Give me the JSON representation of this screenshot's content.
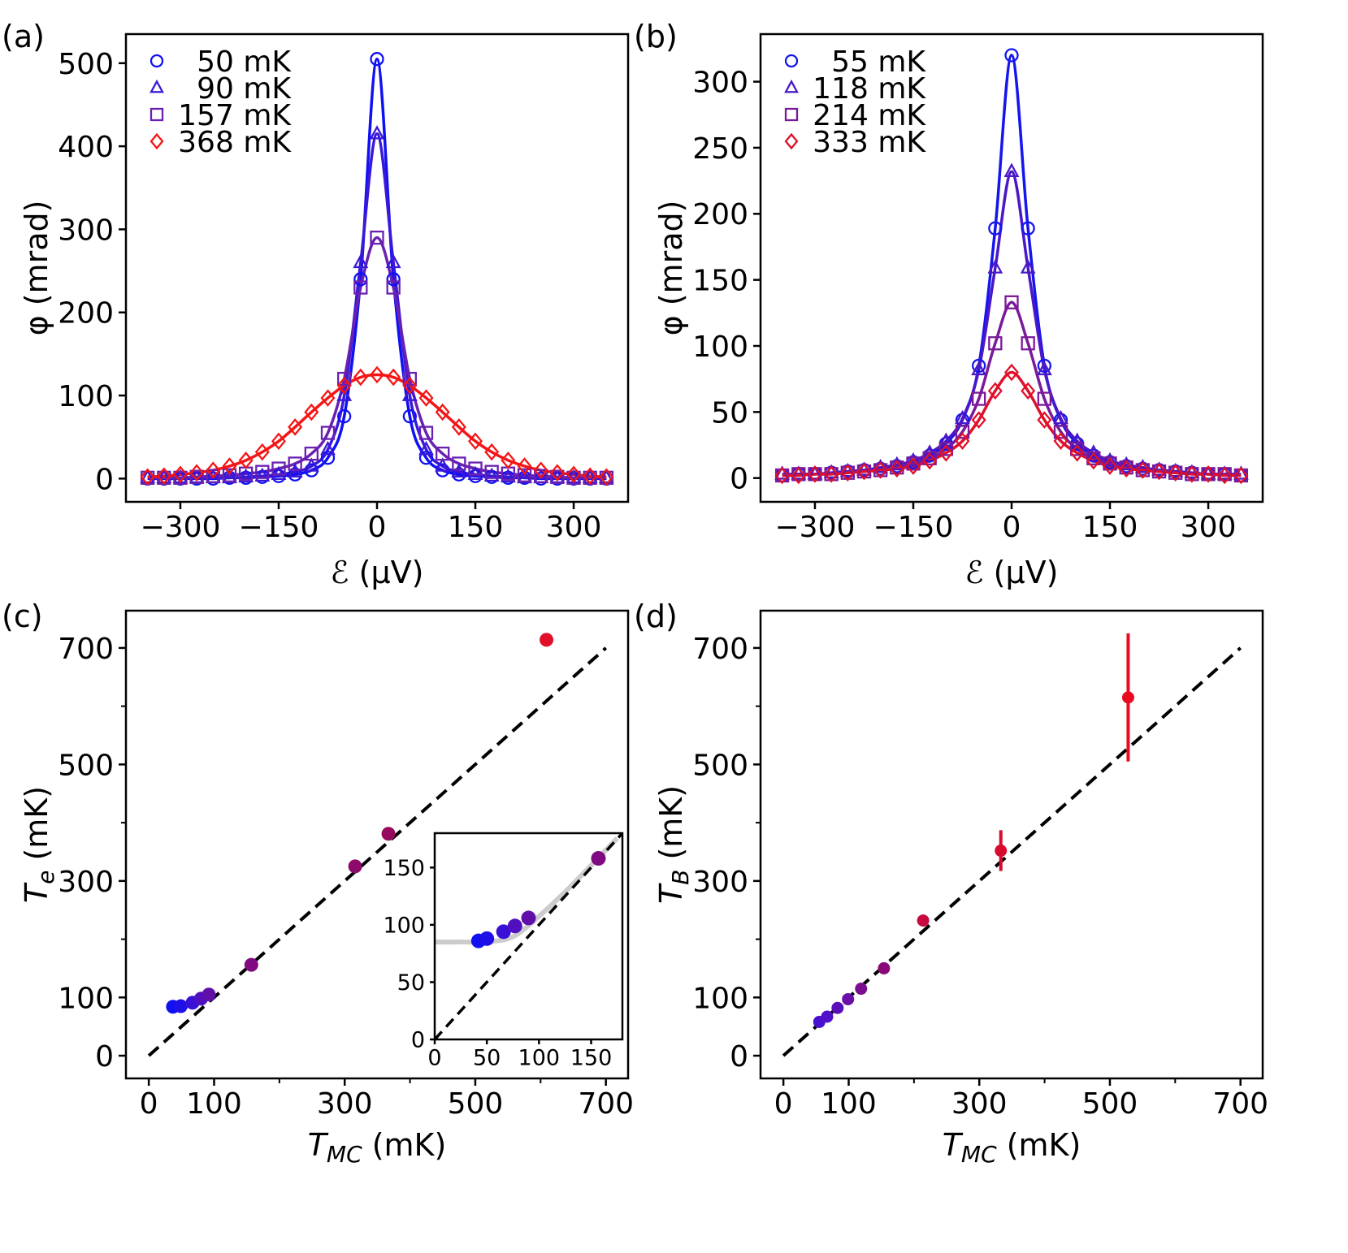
{
  "chart_data": [
    {
      "panel": "(a)",
      "type": "scatter",
      "xlabel": "ℰ (μV)",
      "ylabel": "φ (mrad)",
      "xlim": [
        -383,
        383
      ],
      "ylim": [
        -28,
        535
      ],
      "xticks": [
        -300,
        -150,
        0,
        150,
        300
      ],
      "xtick_labels": [
        "−300",
        "−150",
        "0",
        "150",
        "300"
      ],
      "yticks": [
        0,
        100,
        200,
        300,
        400,
        500
      ],
      "ytick_labels": [
        "0",
        "100",
        "200",
        "300",
        "400",
        "500"
      ],
      "legend_placement": "top-left",
      "x": [
        -350,
        -325,
        -300,
        -275,
        -250,
        -225,
        -200,
        -175,
        -150,
        -125,
        -100,
        -75,
        -50,
        -25,
        0,
        25,
        50,
        75,
        100,
        125,
        150,
        175,
        200,
        225,
        250,
        275,
        300,
        325,
        350
      ],
      "series": [
        {
          "name": "50 mK",
          "marker": "circle",
          "color": "#1010f5",
          "values": [
            0,
            0,
            0,
            0,
            0,
            1,
            1,
            2,
            3,
            5,
            10,
            25,
            75,
            240,
            505,
            240,
            75,
            25,
            10,
            5,
            3,
            2,
            1,
            1,
            0,
            0,
            0,
            0,
            0
          ]
        },
        {
          "name": "90 mK",
          "marker": "triangle",
          "color": "#3a18d8",
          "values": [
            1,
            1,
            1,
            1,
            1,
            1,
            2,
            3,
            5,
            8,
            15,
            35,
            100,
            260,
            415,
            260,
            100,
            35,
            15,
            8,
            5,
            3,
            2,
            1,
            1,
            1,
            1,
            1,
            1
          ]
        },
        {
          "name": "157 mK",
          "marker": "square",
          "color": "#6a20b0",
          "values": [
            1,
            1,
            1,
            2,
            3,
            4,
            6,
            8,
            12,
            18,
            30,
            55,
            120,
            230,
            290,
            230,
            120,
            55,
            30,
            18,
            12,
            8,
            6,
            4,
            3,
            2,
            1,
            1,
            1
          ]
        },
        {
          "name": "368 mK",
          "marker": "diamond",
          "color": "#f51515",
          "values": [
            2,
            3,
            5,
            7,
            10,
            15,
            22,
            32,
            45,
            62,
            80,
            97,
            112,
            122,
            125,
            122,
            112,
            97,
            80,
            62,
            45,
            32,
            22,
            15,
            10,
            7,
            5,
            3,
            2
          ]
        }
      ]
    },
    {
      "panel": "(b)",
      "type": "scatter",
      "xlabel": "ℰ (μV)",
      "ylabel": "φ (mrad)",
      "xlim": [
        -383,
        383
      ],
      "ylim": [
        -18,
        336
      ],
      "xticks": [
        -300,
        -150,
        0,
        150,
        300
      ],
      "xtick_labels": [
        "−300",
        "−150",
        "0",
        "150",
        "300"
      ],
      "yticks": [
        0,
        50,
        100,
        150,
        200,
        250,
        300
      ],
      "ytick_labels": [
        "0",
        "50",
        "100",
        "150",
        "200",
        "250",
        "300"
      ],
      "legend_placement": "top-left",
      "x": [
        -350,
        -325,
        -300,
        -275,
        -250,
        -225,
        -200,
        -175,
        -150,
        -125,
        -100,
        -75,
        -50,
        -25,
        0,
        25,
        50,
        75,
        100,
        125,
        150,
        175,
        200,
        225,
        250,
        275,
        300,
        325,
        350
      ],
      "series": [
        {
          "name": "55 mK",
          "marker": "circle",
          "color": "#1515ee",
          "values": [
            2,
            3,
            3,
            4,
            5,
            6,
            7,
            9,
            12,
            17,
            26,
            44,
            85,
            189,
            320,
            189,
            85,
            44,
            26,
            17,
            12,
            9,
            7,
            6,
            5,
            4,
            3,
            3,
            2
          ]
        },
        {
          "name": "118 mK",
          "marker": "triangle",
          "color": "#4a18c8",
          "values": [
            3,
            3,
            3,
            4,
            5,
            6,
            8,
            10,
            13,
            19,
            28,
            45,
            82,
            159,
            232,
            159,
            82,
            45,
            28,
            19,
            13,
            10,
            8,
            6,
            5,
            4,
            3,
            3,
            3
          ]
        },
        {
          "name": "214 mK",
          "marker": "square",
          "color": "#7a1a9a",
          "values": [
            2,
            3,
            3,
            3,
            4,
            5,
            6,
            8,
            11,
            15,
            22,
            35,
            60,
            102,
            133,
            102,
            60,
            35,
            22,
            15,
            11,
            8,
            6,
            5,
            4,
            3,
            3,
            3,
            2
          ]
        },
        {
          "name": "333 mK",
          "marker": "diamond",
          "color": "#e0102a",
          "values": [
            2,
            2,
            3,
            3,
            4,
            5,
            6,
            7,
            9,
            13,
            19,
            28,
            44,
            66,
            80,
            66,
            44,
            28,
            19,
            13,
            9,
            7,
            6,
            5,
            4,
            3,
            3,
            2,
            2
          ]
        }
      ]
    },
    {
      "panel": "(c)",
      "type": "scatter",
      "xlabel_main": "T",
      "xlabel_sub": "MC",
      "xlabel_unit": " (mK)",
      "ylabel_main": "T",
      "ylabel_sub": "e",
      "ylabel_unit": " (mK)",
      "xlim": [
        -35,
        734
      ],
      "ylim": [
        -39,
        764
      ],
      "xticks": [
        0,
        100,
        300,
        500,
        700
      ],
      "xtick_labels": [
        "0",
        "100",
        "300",
        "500",
        "700"
      ],
      "xminor": [
        200,
        400,
        600
      ],
      "yticks": [
        0,
        100,
        300,
        500,
        700
      ],
      "ytick_labels": [
        "0",
        "100",
        "300",
        "500",
        "700"
      ],
      "yminor": [
        200,
        400,
        600
      ],
      "reference_line": "y = x (dashed)",
      "points": {
        "x": [
          37,
          49,
          67,
          80,
          92,
          157,
          316,
          367,
          609
        ],
        "y": [
          84,
          85,
          91,
          98,
          105,
          156,
          325,
          381,
          714
        ],
        "colors": [
          "#1010f0",
          "#2010e8",
          "#3810d8",
          "#5010c0",
          "#6010a8",
          "#800a80",
          "#8c0a6a",
          "#960a5e",
          "#e0102a"
        ]
      },
      "inset": {
        "xlim": [
          0,
          180
        ],
        "ylim": [
          0,
          180
        ],
        "xticks": [
          0,
          50,
          100,
          150
        ],
        "xtick_labels": [
          "0",
          "50",
          "100",
          "150"
        ],
        "yticks": [
          0,
          50,
          100,
          150
        ],
        "ytick_labels": [
          "0",
          "50",
          "100",
          "150"
        ],
        "points": {
          "x": [
            42,
            50,
            66,
            77,
            90,
            157
          ],
          "y": [
            86,
            88,
            94,
            99,
            106,
            158
          ],
          "colors": [
            "#1010f0",
            "#2010e8",
            "#3810d8",
            "#5010c0",
            "#6010a8",
            "#800a80"
          ]
        },
        "curve": {
          "color": "#cccccc",
          "x": [
            0,
            25,
            50,
            75,
            100,
            125,
            150,
            175
          ],
          "y": [
            85,
            85,
            85.3,
            89.6,
            107.5,
            128.7,
            151.9,
            175.6
          ]
        },
        "reference_line": "y = x (dashed)"
      }
    },
    {
      "panel": "(d)",
      "type": "scatter",
      "xlabel_main": "T",
      "xlabel_sub": "MC",
      "xlabel_unit": " (mK)",
      "ylabel_main": "T",
      "ylabel_sub": "B",
      "ylabel_unit": " (mK)",
      "xlim": [
        -35,
        734
      ],
      "ylim": [
        -39,
        764
      ],
      "xticks": [
        0,
        100,
        300,
        500,
        700
      ],
      "xtick_labels": [
        "0",
        "100",
        "300",
        "500",
        "700"
      ],
      "xminor": [
        200,
        400,
        600
      ],
      "yticks": [
        0,
        100,
        300,
        500,
        700
      ],
      "ytick_labels": [
        "0",
        "100",
        "300",
        "500",
        "700"
      ],
      "yminor": [
        200,
        400,
        600
      ],
      "reference_line": "y = x (dashed)",
      "points": {
        "x": [
          55,
          67,
          83,
          99,
          119,
          154,
          214,
          333,
          528
        ],
        "y": [
          58,
          67,
          82,
          97,
          115,
          150,
          232,
          352,
          615
        ],
        "yerr": [
          0,
          0,
          0,
          0,
          2,
          4,
          10,
          35,
          110
        ],
        "colors": [
          "#4a10d0",
          "#5210c8",
          "#5a10b8",
          "#6a10a8",
          "#7a1090",
          "#8a0a78",
          "#c80a40",
          "#d80a30",
          "#e80a20"
        ]
      }
    }
  ]
}
